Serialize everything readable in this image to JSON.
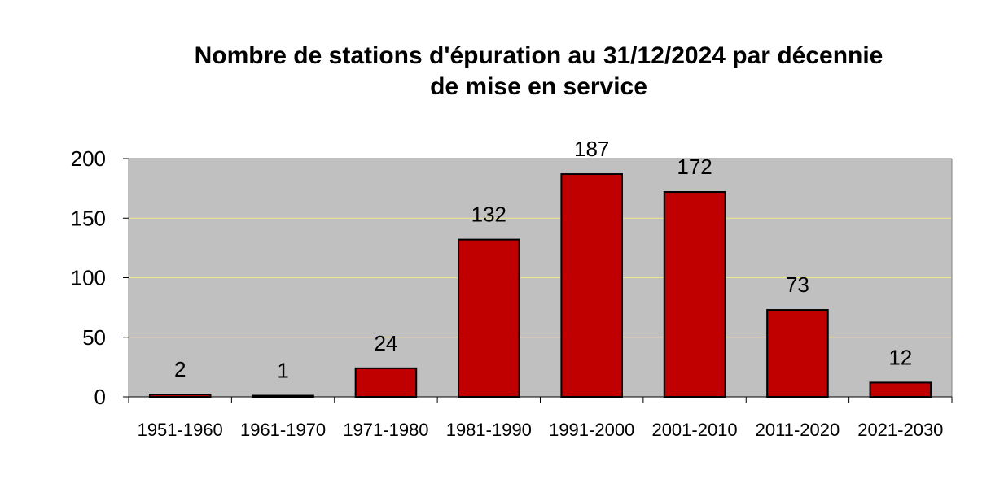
{
  "chart_data": {
    "type": "bar",
    "title_line1": "Nombre de stations d'épuration au 31/12/2024 par décennie",
    "title_line2": "de mise en service",
    "categories": [
      "1951-1960",
      "1961-1970",
      "1971-1980",
      "1981-1990",
      "1991-2000",
      "2001-2010",
      "2011-2020",
      "2021-2030"
    ],
    "values": [
      2,
      1,
      24,
      132,
      187,
      172,
      73,
      12
    ],
    "data_labels": [
      "2",
      "1",
      "24",
      "132",
      "187",
      "172",
      "73",
      "12"
    ],
    "xlabel": "",
    "ylabel": "",
    "ylim": [
      0,
      200
    ],
    "yticks": [
      0,
      50,
      100,
      150,
      200
    ],
    "grid": true,
    "legend": "none",
    "colors": {
      "bar": "#c00000",
      "plot_background": "#c0c0c0",
      "gridline": "#f0e68c"
    }
  }
}
